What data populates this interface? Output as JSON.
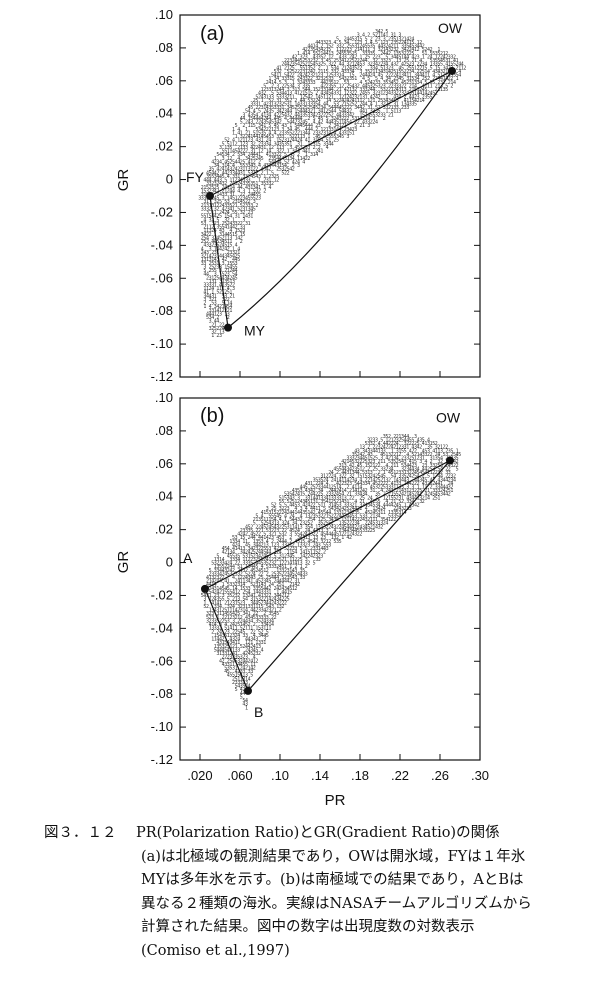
{
  "chart_data": [
    {
      "type": "scatter",
      "panel_label": "(a)",
      "xlabel": "",
      "ylabel": "GR",
      "xlim": [
        0.0,
        0.3
      ],
      "ylim": [
        -0.12,
        0.1
      ],
      "yticks": [
        ".10",
        ".08",
        ".06",
        ".04",
        ".02",
        "0",
        "-.02",
        "-.04",
        "-.06",
        "-.08",
        "-.10",
        "-.12"
      ],
      "ytick_values": [
        0.1,
        0.08,
        0.06,
        0.04,
        0.02,
        0,
        -0.02,
        -0.04,
        -0.06,
        -0.08,
        -0.1,
        -0.12
      ],
      "points": [
        {
          "label": "OW",
          "x": 0.272,
          "y": 0.066
        },
        {
          "label": "FY",
          "x": 0.03,
          "y": -0.01
        },
        {
          "label": "MY",
          "x": 0.048,
          "y": -0.09
        }
      ],
      "tie_points_triangle": {
        "vertices": [
          "OW",
          "FY",
          "MY"
        ],
        "ow_my_edge": "curved"
      },
      "cloud_polygon": [
        [
          0.03,
          -0.097
        ],
        [
          0.022,
          -0.075
        ],
        [
          0.02,
          -0.04
        ],
        [
          0.018,
          -0.01
        ],
        [
          0.028,
          0.008
        ],
        [
          0.05,
          0.03
        ],
        [
          0.08,
          0.055
        ],
        [
          0.1,
          0.07
        ],
        [
          0.13,
          0.082
        ],
        [
          0.17,
          0.086
        ],
        [
          0.2,
          0.09
        ],
        [
          0.23,
          0.085
        ],
        [
          0.27,
          0.075
        ],
        [
          0.285,
          0.068
        ],
        [
          0.27,
          0.055
        ],
        [
          0.2,
          0.035
        ],
        [
          0.15,
          0.02
        ],
        [
          0.1,
          0.0
        ],
        [
          0.08,
          -0.01
        ],
        [
          0.06,
          -0.04
        ],
        [
          0.05,
          -0.08
        ],
        [
          0.04,
          -0.097
        ]
      ]
    },
    {
      "type": "scatter",
      "panel_label": "(b)",
      "xlabel": "PR",
      "ylabel": "GR",
      "xlim": [
        0.0,
        0.3
      ],
      "ylim": [
        -0.12,
        0.1
      ],
      "xticks": [
        ".020",
        ".060",
        ".10",
        ".14",
        ".18",
        ".22",
        ".26",
        ".30"
      ],
      "xtick_values": [
        0.02,
        0.06,
        0.1,
        0.14,
        0.18,
        0.22,
        0.26,
        0.3
      ],
      "yticks": [
        ".10",
        ".08",
        ".06",
        ".04",
        ".02",
        "0",
        "-.02",
        "-.04",
        "-.06",
        "-.08",
        "-.10",
        "-.12"
      ],
      "ytick_values": [
        0.1,
        0.08,
        0.06,
        0.04,
        0.02,
        0,
        -0.02,
        -0.04,
        -0.06,
        -0.08,
        -0.1,
        -0.12
      ],
      "points": [
        {
          "label": "OW",
          "x": 0.27,
          "y": 0.062
        },
        {
          "label": "A",
          "x": 0.025,
          "y": -0.016
        },
        {
          "label": "B",
          "x": 0.068,
          "y": -0.078
        }
      ],
      "tie_points_triangle": {
        "vertices": [
          "OW",
          "A",
          "B"
        ],
        "ow_b_edge": "straight"
      },
      "cloud_polygon": [
        [
          0.02,
          -0.02
        ],
        [
          0.03,
          0.0
        ],
        [
          0.06,
          0.02
        ],
        [
          0.1,
          0.04
        ],
        [
          0.15,
          0.055
        ],
        [
          0.19,
          0.075
        ],
        [
          0.23,
          0.078
        ],
        [
          0.28,
          0.066
        ],
        [
          0.27,
          0.04
        ],
        [
          0.24,
          0.035
        ],
        [
          0.2,
          0.02
        ],
        [
          0.15,
          0.01
        ],
        [
          0.11,
          -0.02
        ],
        [
          0.09,
          -0.04
        ],
        [
          0.07,
          -0.07
        ],
        [
          0.065,
          -0.09
        ],
        [
          0.05,
          -0.075
        ],
        [
          0.03,
          -0.05
        ]
      ]
    }
  ],
  "caption": {
    "figure_number": "図３．１２",
    "lines": [
      "PR(Polarization Ratio)とGR(Gradient Ratio)の関係",
      "(a)は北極域の観測結果であり，OWは開氷域，FYは１年氷",
      "MYは多年氷を示す。(b)は南極域での結果であり，AとBは",
      "異なる２種類の海氷。実線はNASAチームアルゴリズムから",
      "計算された結果。図中の数字は出現度数の対数表示",
      "(Comiso et al.,1997)"
    ]
  }
}
